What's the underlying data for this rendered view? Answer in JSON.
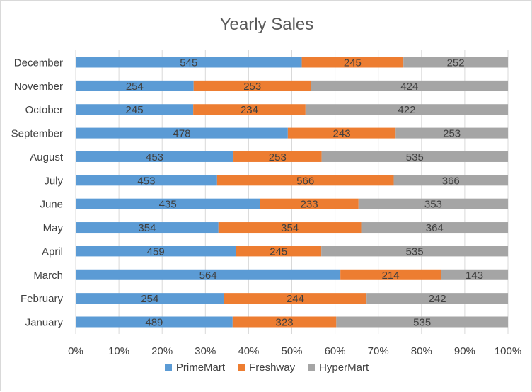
{
  "chart_data": {
    "type": "bar",
    "orientation": "horizontal",
    "stacking": "percent",
    "title": "Yearly Sales",
    "categories": [
      "January",
      "February",
      "March",
      "April",
      "May",
      "June",
      "July",
      "August",
      "September",
      "October",
      "November",
      "December"
    ],
    "series": [
      {
        "name": "PrimeMart",
        "color": "#5b9bd5",
        "values": [
          489,
          254,
          564,
          459,
          354,
          435,
          453,
          453,
          478,
          245,
          254,
          545
        ]
      },
      {
        "name": "Freshway",
        "color": "#ed7d31",
        "values": [
          323,
          244,
          214,
          245,
          354,
          233,
          566,
          253,
          243,
          234,
          253,
          245
        ]
      },
      {
        "name": "HyperMart",
        "color": "#a5a5a5",
        "values": [
          535,
          242,
          143,
          535,
          364,
          353,
          366,
          535,
          253,
          422,
          424,
          252
        ]
      }
    ],
    "x_ticks": [
      "0%",
      "10%",
      "20%",
      "30%",
      "40%",
      "50%",
      "60%",
      "70%",
      "80%",
      "90%",
      "100%"
    ],
    "xlim": [
      0,
      100
    ],
    "grid": true,
    "legend_position": "bottom"
  }
}
